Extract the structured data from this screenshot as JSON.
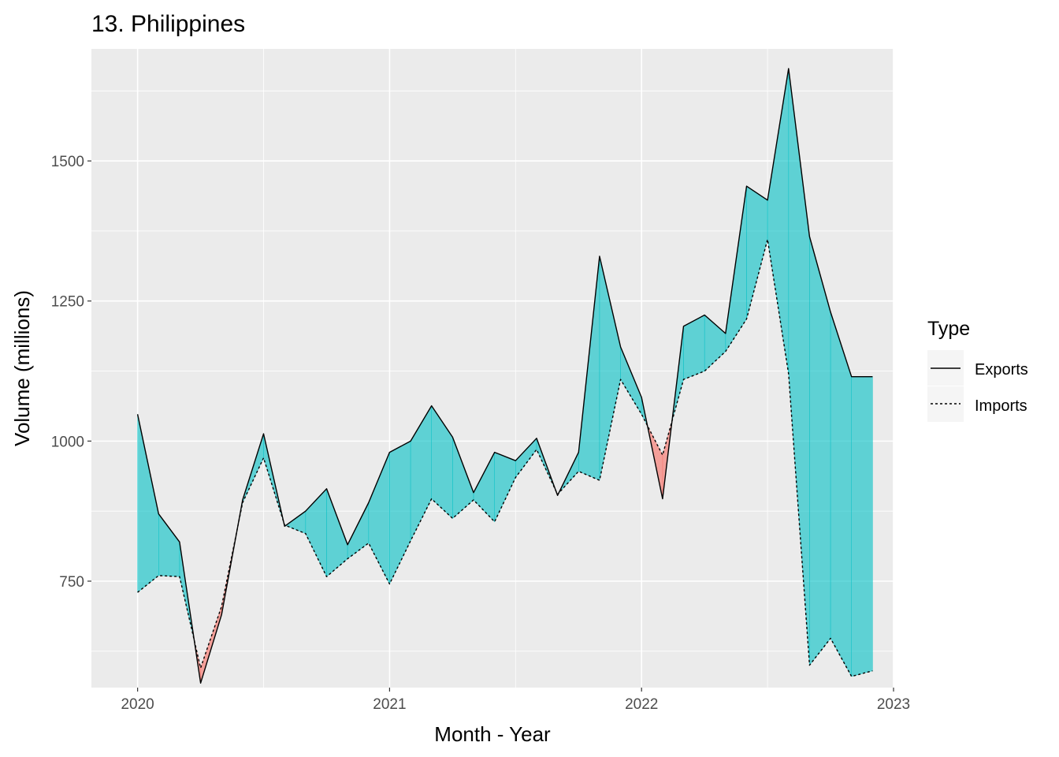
{
  "chart_data": {
    "type": "area",
    "title": "13. Philippines",
    "xlabel": "Month - Year",
    "ylabel": "Volume (millions)",
    "x_ticks": [
      "2020",
      "2021",
      "2022",
      "2023"
    ],
    "y_ticks": [
      750,
      1000,
      1250,
      1500
    ],
    "xlim": [
      "2019-11",
      "2023-01"
    ],
    "ylim": [
      560,
      1700
    ],
    "grid": true,
    "legend": {
      "title": "Type",
      "position": "right",
      "entries": [
        "Exports",
        "Imports"
      ]
    },
    "colors": {
      "exports_surplus_fill": "#00BFC4",
      "imports_surplus_fill": "#F8766D",
      "panel_background": "#EBEBEB",
      "grid": "#FFFFFF",
      "line": "#000000"
    },
    "x": [
      "2020-01",
      "2020-02",
      "2020-03",
      "2020-04",
      "2020-05",
      "2020-06",
      "2020-07",
      "2020-08",
      "2020-09",
      "2020-10",
      "2020-11",
      "2020-12",
      "2021-01",
      "2021-02",
      "2021-03",
      "2021-04",
      "2021-05",
      "2021-06",
      "2021-07",
      "2021-08",
      "2021-09",
      "2021-10",
      "2021-11",
      "2021-12",
      "2022-01",
      "2022-02",
      "2022-03",
      "2022-04",
      "2022-05",
      "2022-06",
      "2022-07",
      "2022-08",
      "2022-09",
      "2022-10",
      "2022-11",
      "2022-12"
    ],
    "series": [
      {
        "name": "Exports",
        "line_style": "solid",
        "values": [
          1048,
          870,
          820,
          568,
          690,
          895,
          1013,
          848,
          875,
          915,
          815,
          890,
          980,
          1000,
          1063,
          1007,
          908,
          980,
          965,
          1005,
          903,
          980,
          1330,
          1168,
          1078,
          897,
          1205,
          1225,
          1192,
          1455,
          1430,
          1665,
          1365,
          1230,
          1115,
          1115
        ]
      },
      {
        "name": "Imports",
        "line_style": "dotted",
        "values": [
          730,
          760,
          758,
          595,
          705,
          890,
          970,
          850,
          835,
          758,
          790,
          818,
          745,
          822,
          897,
          862,
          895,
          856,
          935,
          985,
          905,
          946,
          930,
          1110,
          1048,
          975,
          1110,
          1125,
          1160,
          1218,
          1360,
          1120,
          600,
          648,
          580,
          590
        ]
      }
    ]
  }
}
